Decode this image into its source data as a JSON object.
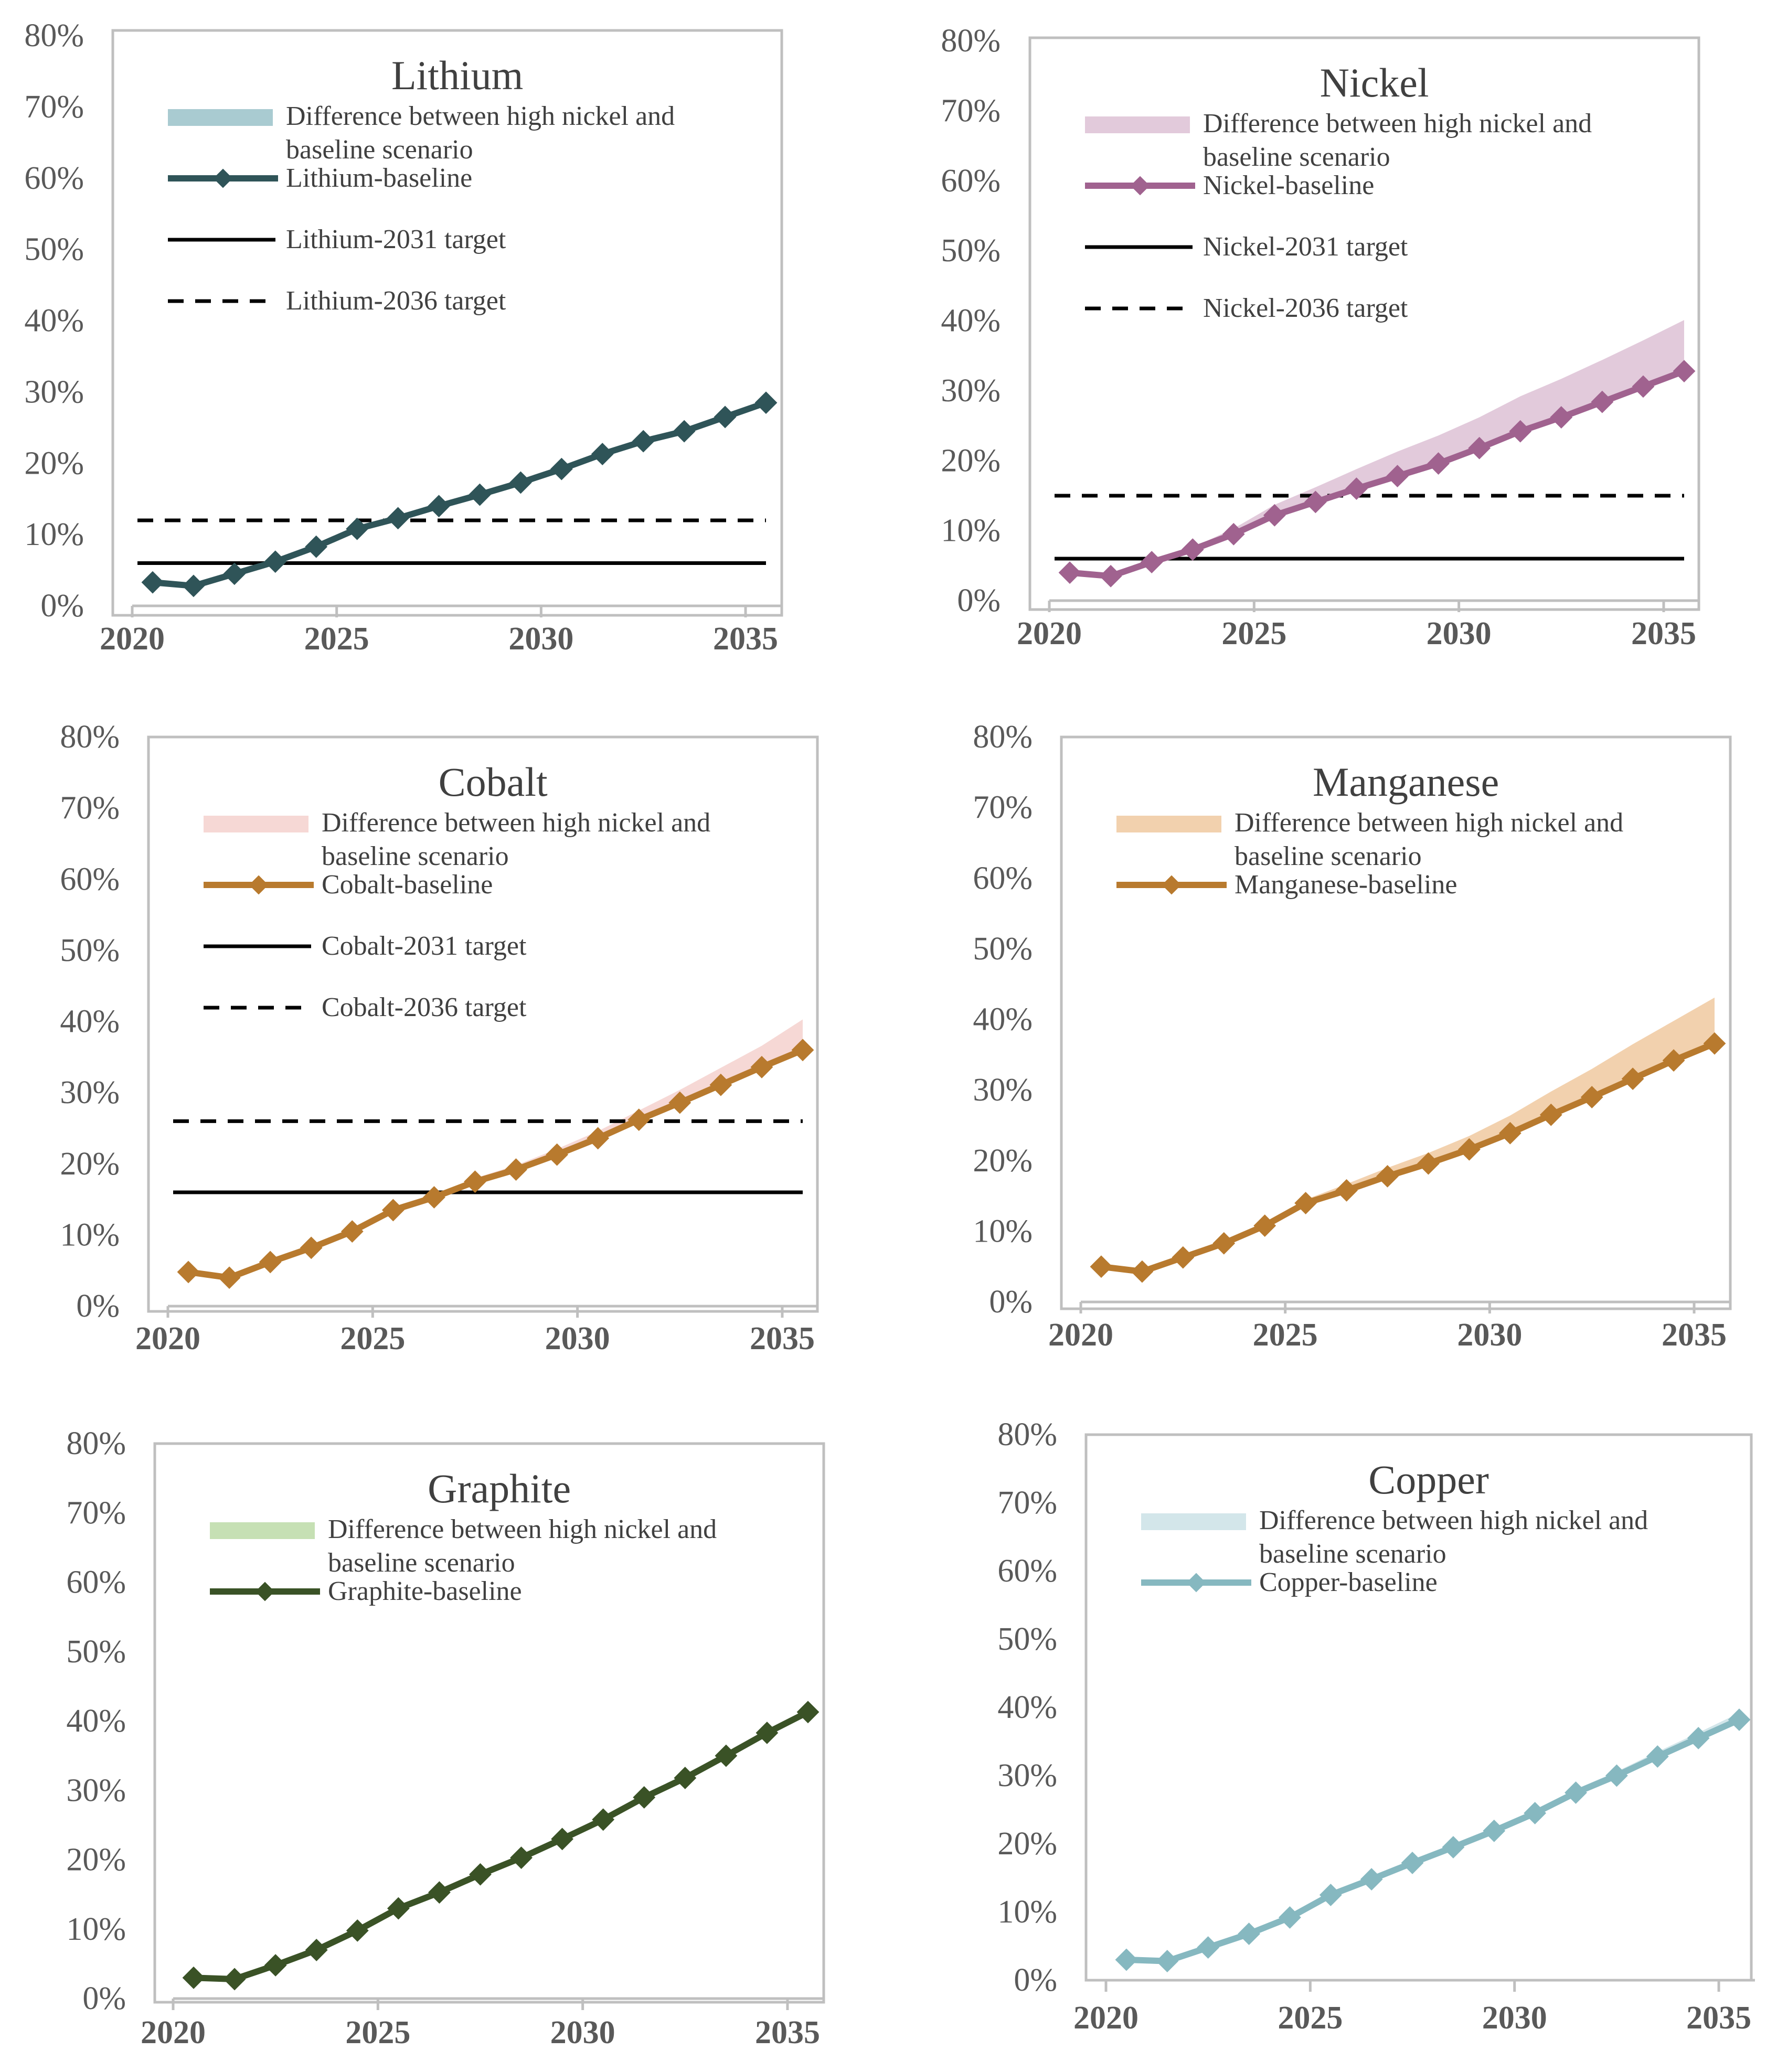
{
  "chart_data": [
    {
      "type": "line",
      "title": "Lithium",
      "colors": {
        "line": "#2f5458",
        "band": "#a9cbd1"
      },
      "x": [
        2020.5,
        2021.5,
        2022.5,
        2023.5,
        2024.5,
        2025.5,
        2026.5,
        2027.5,
        2028.5,
        2029.5,
        2030.5,
        2031.5,
        2032.5,
        2033.5,
        2034.5,
        2035.5
      ],
      "series": [
        {
          "name": "Lithium-baseline",
          "values": [
            3.3,
            2.8,
            4.5,
            6.2,
            8.3,
            10.8,
            12.3,
            14.0,
            15.6,
            17.3,
            19.2,
            21.3,
            23.1,
            24.5,
            26.5,
            28.5
          ]
        },
        {
          "name": "Difference between high nickel and baseline scenario",
          "kind": "band",
          "values": [
            0,
            0,
            0,
            0,
            0.1,
            0.1,
            0.1,
            0.1,
            0.2,
            0.2,
            0.2,
            0.3,
            0.3,
            0.3,
            0.3,
            0.3
          ]
        },
        {
          "name": "Lithium-2031 target",
          "kind": "hline",
          "value": 6
        },
        {
          "name": "Lithium-2036 target",
          "kind": "hline_dashed",
          "value": 12
        }
      ],
      "legend_line1": "Difference between high nickel and",
      "legend_line2": "baseline scenario",
      "xticks": [
        "2020",
        "2025",
        "2030",
        "2035"
      ],
      "xtick_values": [
        2020,
        2025,
        2030,
        2035
      ],
      "yticks": [
        "0%",
        "10%",
        "20%",
        "30%",
        "40%",
        "50%",
        "60%",
        "70%",
        "80%"
      ],
      "xlim": [
        2020,
        2035.5
      ],
      "ylim": [
        0,
        80
      ],
      "xlabel": "",
      "ylabel": ""
    },
    {
      "type": "line",
      "title": "Nickel",
      "colors": {
        "line": "#a0628f",
        "band": "#e2cadb"
      },
      "x": [
        2020.5,
        2021.5,
        2022.5,
        2023.5,
        2024.5,
        2025.5,
        2026.5,
        2027.5,
        2028.5,
        2029.5,
        2030.5,
        2031.5,
        2032.5,
        2033.5,
        2034.5,
        2035.5
      ],
      "series": [
        {
          "name": "Nickel-baseline",
          "values": [
            4.0,
            3.5,
            5.5,
            7.3,
            9.5,
            12.2,
            14.1,
            16.0,
            17.8,
            19.6,
            21.8,
            24.2,
            26.2,
            28.4,
            30.6,
            32.8
          ]
        },
        {
          "name": "Difference between high nickel and baseline scenario",
          "kind": "band",
          "values": [
            0,
            0,
            0,
            0.3,
            0.8,
            1.5,
            2.1,
            2.8,
            3.5,
            4.0,
            4.4,
            5.0,
            5.5,
            6.0,
            6.6,
            7.3
          ]
        },
        {
          "name": "Nickel-2031 target",
          "kind": "hline",
          "value": 6
        },
        {
          "name": "Nickel-2036 target",
          "kind": "hline_dashed",
          "value": 15
        }
      ],
      "legend_line1": "Difference between high nickel and",
      "legend_line2": "baseline scenario",
      "xticks": [
        "2020",
        "2025",
        "2030",
        "2035"
      ],
      "xtick_values": [
        2020,
        2025,
        2030,
        2035
      ],
      "yticks": [
        "0%",
        "10%",
        "20%",
        "30%",
        "40%",
        "50%",
        "60%",
        "70%",
        "80%"
      ],
      "xlim": [
        2020,
        2035.5
      ],
      "ylim": [
        0,
        80
      ],
      "xlabel": "",
      "ylabel": ""
    },
    {
      "type": "line",
      "title": "Cobalt",
      "colors": {
        "line": "#b87a2e",
        "band": "#f6d8d5"
      },
      "x": [
        2020.5,
        2021.5,
        2022.5,
        2023.5,
        2024.5,
        2025.5,
        2026.5,
        2027.5,
        2028.5,
        2029.5,
        2030.5,
        2031.5,
        2032.5,
        2033.5,
        2034.5,
        2035.5
      ],
      "series": [
        {
          "name": "Cobalt-baseline",
          "values": [
            4.8,
            4.0,
            6.2,
            8.2,
            10.5,
            13.5,
            15.3,
            17.5,
            19.2,
            21.3,
            23.6,
            26.2,
            28.6,
            31.1,
            33.6,
            36.0
          ]
        },
        {
          "name": "Difference between high nickel and baseline scenario",
          "kind": "band",
          "values": [
            0,
            0,
            0,
            0,
            0,
            0.2,
            0.2,
            0.5,
            0.6,
            0.8,
            1.0,
            1.3,
            1.8,
            2.4,
            3.0,
            4.3
          ]
        },
        {
          "name": "Cobalt-2031 target",
          "kind": "hline",
          "value": 16
        },
        {
          "name": "Cobalt-2036 target",
          "kind": "hline_dashed",
          "value": 26
        }
      ],
      "legend_line1": "Difference between high nickel and",
      "legend_line2": "baseline scenario",
      "xticks": [
        "2020",
        "2025",
        "2030",
        "2035"
      ],
      "xtick_values": [
        2020,
        2025,
        2030,
        2035
      ],
      "yticks": [
        "0%",
        "10%",
        "20%",
        "30%",
        "40%",
        "50%",
        "60%",
        "70%",
        "80%"
      ],
      "xlim": [
        2020,
        2035.5
      ],
      "ylim": [
        0,
        80
      ],
      "xlabel": "",
      "ylabel": ""
    },
    {
      "type": "line",
      "title": "Manganese",
      "colors": {
        "line": "#b87a2e",
        "band": "#f2d1ae"
      },
      "x": [
        2020.5,
        2021.5,
        2022.5,
        2023.5,
        2024.5,
        2025.5,
        2026.5,
        2027.5,
        2028.5,
        2029.5,
        2030.5,
        2031.5,
        2032.5,
        2033.5,
        2034.5,
        2035.5
      ],
      "series": [
        {
          "name": "Manganese-baseline",
          "values": [
            5.0,
            4.3,
            6.3,
            8.3,
            10.8,
            14.0,
            15.8,
            17.8,
            19.6,
            21.6,
            23.9,
            26.5,
            29.0,
            31.6,
            34.2,
            36.6
          ]
        },
        {
          "name": "Difference between high nickel and baseline scenario",
          "kind": "band",
          "values": [
            0,
            0,
            0,
            0,
            0.3,
            0.5,
            0.9,
            1.2,
            1.5,
            1.9,
            2.5,
            3.3,
            4.0,
            4.9,
            5.6,
            6.5
          ]
        }
      ],
      "legend_line1": "Difference between high nickel and",
      "legend_line2": "baseline scenario",
      "xticks": [
        "2020",
        "2025",
        "2030",
        "2035"
      ],
      "xtick_values": [
        2020,
        2025,
        2030,
        2035
      ],
      "yticks": [
        "0%",
        "10%",
        "20%",
        "30%",
        "40%",
        "50%",
        "60%",
        "70%",
        "80%"
      ],
      "xlim": [
        2020,
        2035.5
      ],
      "ylim": [
        0,
        80
      ],
      "xlabel": "",
      "ylabel": ""
    },
    {
      "type": "line",
      "title": "Graphite",
      "colors": {
        "line": "#3a5226",
        "band": "#c6e0b4"
      },
      "x": [
        2020.5,
        2021.5,
        2022.5,
        2023.5,
        2024.5,
        2025.5,
        2026.5,
        2027.5,
        2028.5,
        2029.5,
        2030.5,
        2031.5,
        2032.5,
        2033.5,
        2034.5,
        2035.5
      ],
      "series": [
        {
          "name": "Graphite-baseline",
          "values": [
            3.0,
            2.8,
            4.8,
            7.0,
            9.8,
            13.0,
            15.3,
            17.9,
            20.3,
            23.0,
            25.8,
            29.0,
            31.8,
            35.0,
            38.3,
            41.3
          ]
        },
        {
          "name": "Difference between high nickel and baseline scenario",
          "kind": "band",
          "values": [
            0,
            0,
            0,
            0,
            0,
            0,
            0,
            0,
            0,
            0,
            0,
            0,
            0,
            0,
            0,
            0
          ]
        }
      ],
      "legend_line1": "Difference between high nickel and",
      "legend_line2": "baseline scenario",
      "xticks": [
        "2020",
        "2025",
        "2030",
        "2035"
      ],
      "xtick_values": [
        2020,
        2025,
        2030,
        2035
      ],
      "yticks": [
        "0%",
        "10%",
        "20%",
        "30%",
        "40%",
        "50%",
        "60%",
        "70%",
        "80%"
      ],
      "xlim": [
        2020,
        2035.5
      ],
      "ylim": [
        0,
        80
      ],
      "xlabel": "",
      "ylabel": ""
    },
    {
      "type": "line",
      "title": "Copper",
      "colors": {
        "line": "#86b8c0",
        "band": "#d3e6ea"
      },
      "x": [
        2020.5,
        2021.5,
        2022.5,
        2023.5,
        2024.5,
        2025.5,
        2026.5,
        2027.5,
        2028.5,
        2029.5,
        2030.5,
        2031.5,
        2032.5,
        2033.5,
        2034.5,
        2035.5
      ],
      "series": [
        {
          "name": "Copper-baseline",
          "values": [
            3.0,
            2.8,
            4.8,
            6.8,
            9.2,
            12.5,
            14.8,
            17.2,
            19.5,
            21.9,
            24.5,
            27.5,
            30.0,
            32.8,
            35.5,
            38.2
          ]
        },
        {
          "name": "Difference between high nickel and baseline scenario",
          "kind": "band",
          "values": [
            0,
            0,
            0,
            0,
            0.1,
            0.1,
            0.2,
            0.2,
            0.3,
            0.3,
            0.4,
            0.5,
            0.6,
            0.7,
            0.8,
            1.0
          ]
        }
      ],
      "legend_line1": "Difference between high nickel and",
      "legend_line2": "baseline scenario",
      "xticks": [
        "2020",
        "2025",
        "2030",
        "2035"
      ],
      "xtick_values": [
        2020,
        2025,
        2030,
        2035
      ],
      "yticks": [
        "0%",
        "10%",
        "20%",
        "30%",
        "40%",
        "50%",
        "60%",
        "70%",
        "80%"
      ],
      "xlim": [
        2020,
        2035.5
      ],
      "ylim": [
        0,
        80
      ],
      "xlabel": "",
      "ylabel": ""
    }
  ]
}
